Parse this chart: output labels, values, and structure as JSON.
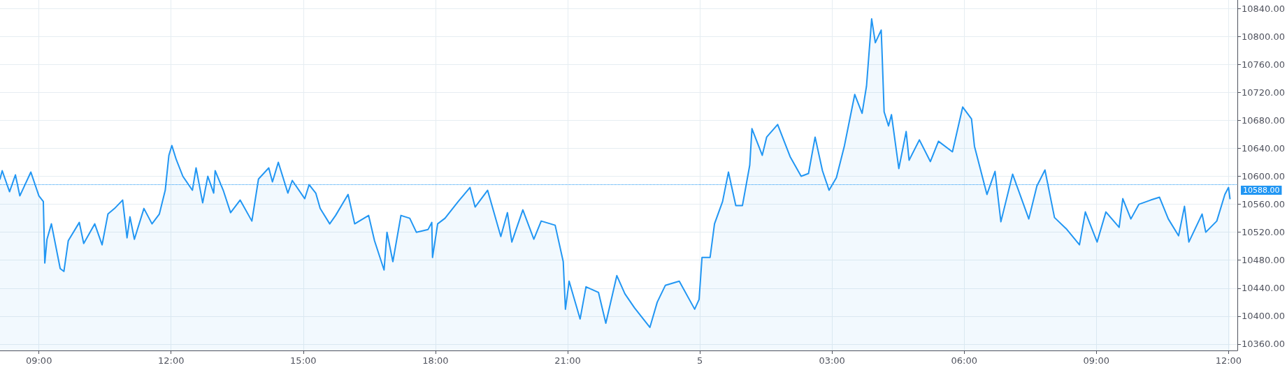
{
  "chart_data": {
    "type": "area",
    "grid": true,
    "marker": "none",
    "line_style": "solid",
    "xlim": [
      "--09-04T08:07",
      "--09-05T12:12"
    ],
    "xticks": [
      {
        "value": "--09-04T09:00",
        "label": "09:00"
      },
      {
        "value": "--09-04T12:00",
        "label": "12:00"
      },
      {
        "value": "--09-04T15:00",
        "label": "15:00"
      },
      {
        "value": "--09-04T18:00",
        "label": "18:00"
      },
      {
        "value": "--09-04T21:00",
        "label": "21:00"
      },
      {
        "value": "--09-05T00:00",
        "label": "5"
      },
      {
        "value": "--09-05T03:00",
        "label": "03:00"
      },
      {
        "value": "--09-05T06:00",
        "label": "06:00"
      },
      {
        "value": "--09-05T09:00",
        "label": "09:00"
      },
      {
        "value": "--09-05T12:00",
        "label": "12:00"
      }
    ],
    "ylim": [
      10351,
      10852
    ],
    "yticks": [
      {
        "value": 10360,
        "label": "10360.00"
      },
      {
        "value": 10400,
        "label": "10400.00"
      },
      {
        "value": 10440,
        "label": "10440.00"
      },
      {
        "value": 10480,
        "label": "10480.00"
      },
      {
        "value": 10520,
        "label": "10520.00"
      },
      {
        "value": 10560,
        "label": "10560.00"
      },
      {
        "value": 10600,
        "label": "10600.00"
      },
      {
        "value": 10640,
        "label": "10640.00"
      },
      {
        "value": 10680,
        "label": "10680.00"
      },
      {
        "value": 10720,
        "label": "10720.00"
      },
      {
        "value": 10760,
        "label": "10760.00"
      },
      {
        "value": 10800,
        "label": "10800.00"
      },
      {
        "value": 10840,
        "label": "10840.00"
      }
    ],
    "ref_lines": [
      {
        "axis": "y",
        "value": 10588,
        "label": "10588.00",
        "color": "#2196f3",
        "line_style": "dotted"
      }
    ],
    "series": [
      {
        "color": "#2196f3",
        "x": [
          "--09-04T08:07",
          "--09-04T08:10",
          "--09-04T08:20",
          "--09-04T08:28",
          "--09-04T08:34",
          "--09-04T08:49",
          "--09-04T09:00",
          "--09-04T09:06",
          "--09-04T09:08",
          "--09-04T09:11",
          "--09-04T09:17",
          "--09-04T09:29",
          "--09-04T09:34",
          "--09-04T09:40",
          "--09-04T09:55",
          "--09-04T10:01",
          "--09-04T10:16",
          "--09-04T10:26",
          "--09-04T10:34",
          "--09-04T10:43",
          "--09-04T10:54",
          "--09-04T11:00",
          "--09-04T11:04",
          "--09-04T11:10",
          "--09-04T11:23",
          "--09-04T11:34",
          "--09-04T11:44",
          "--09-04T11:52",
          "--09-04T11:57",
          "--09-04T12:01",
          "--09-04T12:07",
          "--09-04T12:16",
          "--09-04T12:29",
          "--09-04T12:34",
          "--09-04T12:43",
          "--09-04T12:50",
          "--09-04T12:58",
          "--09-04T13:00",
          "--09-04T13:11",
          "--09-04T13:21",
          "--09-04T13:34",
          "--09-04T13:50",
          "--09-04T13:59",
          "--09-04T14:13",
          "--09-04T14:18",
          "--09-04T14:26",
          "--09-04T14:39",
          "--09-04T14:45",
          "--09-04T15:02",
          "--09-04T15:08",
          "--09-04T15:17",
          "--09-04T15:23",
          "--09-04T15:36",
          "--09-04T15:44",
          "--09-04T16:01",
          "--09-04T16:10",
          "--09-04T16:29",
          "--09-04T16:37",
          "--09-04T16:50",
          "--09-04T16:54",
          "--09-04T17:02",
          "--09-04T17:13",
          "--09-04T17:25",
          "--09-04T17:34",
          "--09-04T17:50",
          "--09-04T17:55",
          "--09-04T17:56",
          "--09-04T18:03",
          "--09-04T18:13",
          "--09-04T18:31",
          "--09-04T18:47",
          "--09-04T18:54",
          "--09-04T19:11",
          "--09-04T19:29",
          "--09-04T19:38",
          "--09-04T19:44",
          "--09-04T19:59",
          "--09-04T20:14",
          "--09-04T20:24",
          "--09-04T20:43",
          "--09-04T20:54",
          "--09-04T20:57",
          "--09-04T21:02",
          "--09-04T21:17",
          "--09-04T21:25",
          "--09-04T21:42",
          "--09-04T21:52",
          "--09-04T22:07",
          "--09-04T22:18",
          "--09-04T22:31",
          "--09-04T22:52",
          "--09-04T23:02",
          "--09-04T23:13",
          "--09-04T23:32",
          "--09-04T23:53",
          "--09-04T23:59",
          "--09-05T00:03",
          "--09-05T00:14",
          "--09-05T00:20",
          "--09-05T00:31",
          "--09-05T00:39",
          "--09-05T00:49",
          "--09-05T00:58",
          "--09-05T01:08",
          "--09-05T01:11",
          "--09-05T01:25",
          "--09-05T01:31",
          "--09-05T01:46",
          "--09-05T02:03",
          "--09-05T02:18",
          "--09-05T02:28",
          "--09-05T02:37",
          "--09-05T02:47",
          "--09-05T02:56",
          "--09-05T03:06",
          "--09-05T03:17",
          "--09-05T03:31",
          "--09-05T03:41",
          "--09-05T03:47",
          "--09-05T03:54",
          "--09-05T03:59",
          "--09-05T04:07",
          "--09-05T04:08",
          "--09-05T04:11",
          "--09-05T04:17",
          "--09-05T04:21",
          "--09-05T04:31",
          "--09-05T04:41",
          "--09-05T04:45",
          "--09-05T04:59",
          "--09-05T05:14",
          "--09-05T05:25",
          "--09-05T05:44",
          "--09-05T05:58",
          "--09-05T06:10",
          "--09-05T06:14",
          "--09-05T06:31",
          "--09-05T06:42",
          "--09-05T06:50",
          "--09-05T07:06",
          "--09-05T07:28",
          "--09-05T07:39",
          "--09-05T07:50",
          "--09-05T08:03",
          "--09-05T08:19",
          "--09-05T08:37",
          "--09-05T08:45",
          "--09-05T09:01",
          "--09-05T09:13",
          "--09-05T09:31",
          "--09-05T09:36",
          "--09-05T09:47",
          "--09-05T09:58",
          "--09-05T10:14",
          "--09-05T10:26",
          "--09-05T10:38",
          "--09-05T10:52",
          "--09-05T11:00",
          "--09-05T11:06",
          "--09-05T11:24",
          "--09-05T11:29",
          "--09-05T11:44",
          "--09-05T11:55",
          "--09-05T12:00",
          "--09-05T12:02"
        ],
        "values": [
          10596,
          10608,
          10578,
          10602,
          10572,
          10606,
          10572,
          10564,
          10476,
          10510,
          10532,
          10468,
          10464,
          10508,
          10534,
          10504,
          10532,
          10502,
          10546,
          10554,
          10566,
          10512,
          10542,
          10510,
          10554,
          10532,
          10546,
          10580,
          10630,
          10644,
          10624,
          10600,
          10580,
          10612,
          10562,
          10600,
          10576,
          10608,
          10580,
          10548,
          10566,
          10536,
          10596,
          10612,
          10592,
          10620,
          10576,
          10594,
          10568,
          10588,
          10576,
          10554,
          10532,
          10544,
          10574,
          10532,
          10544,
          10508,
          10466,
          10520,
          10478,
          10544,
          10540,
          10520,
          10524,
          10534,
          10484,
          10532,
          10540,
          10564,
          10584,
          10556,
          10580,
          10514,
          10548,
          10506,
          10552,
          10510,
          10536,
          10530,
          10478,
          10410,
          10450,
          10396,
          10442,
          10434,
          10390,
          10458,
          10432,
          10412,
          10384,
          10420,
          10444,
          10450,
          10410,
          10424,
          10484,
          10484,
          10532,
          10564,
          10606,
          10558,
          10558,
          10616,
          10668,
          10630,
          10656,
          10674,
          10628,
          10600,
          10604,
          10656,
          10608,
          10580,
          10598,
          10644,
          10717,
          10690,
          10729,
          10825,
          10791,
          10809,
          10782,
          10692,
          10672,
          10688,
          10611,
          10664,
          10623,
          10652,
          10621,
          10650,
          10635,
          10699,
          10682,
          10643,
          10574,
          10607,
          10535,
          10603,
          10539,
          10586,
          10609,
          10541,
          10525,
          10502,
          10549,
          10506,
          10549,
          10527,
          10568,
          10539,
          10560,
          10566,
          10570,
          10539,
          10515,
          10557,
          10506,
          10546,
          10520,
          10536,
          10574,
          10584,
          10568
        ]
      }
    ]
  }
}
